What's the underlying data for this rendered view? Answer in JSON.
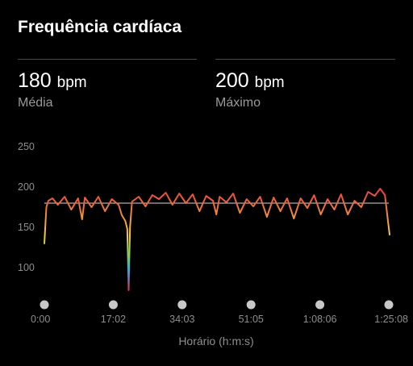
{
  "header": {
    "title": "Frequência cardíaca"
  },
  "stats": {
    "average": {
      "value": "180",
      "unit": "bpm",
      "label": "Média"
    },
    "maximum": {
      "value": "200",
      "unit": "bpm",
      "label": "Máximo"
    }
  },
  "colors": {
    "background": "#000000",
    "line_high": "#e8433b",
    "line_mid": "#f08a3a",
    "line_low": "#f6c944",
    "average_line": "#d8d8d8",
    "marker": "#c8c8c8"
  },
  "chart_data": {
    "type": "line",
    "title": "",
    "xlabel": "Horário (h:m:s)",
    "ylabel": "",
    "y_ticks": [
      "250",
      "200",
      "150",
      "100"
    ],
    "ylim": [
      65,
      260
    ],
    "x_tick_labels": [
      "0:00",
      "17:02",
      "34:03",
      "51:05",
      "1:08:06",
      "1:25:08"
    ],
    "x_ticks_seconds": [
      0,
      1022,
      2043,
      3065,
      4086,
      5108
    ],
    "average_bpm": 180,
    "legend": "none",
    "grid": false,
    "series": [
      {
        "x": [
          0,
          30,
          60,
          120,
          200,
          300,
          400,
          500,
          560,
          600,
          700,
          800,
          900,
          1000,
          1100,
          1150,
          1200,
          1230,
          1250,
          1270,
          1300,
          1400,
          1500,
          1600,
          1700,
          1800,
          1900,
          2000,
          2100,
          2200,
          2300,
          2400,
          2500,
          2550,
          2600,
          2700,
          2800,
          2900,
          3000,
          3100,
          3200,
          3300,
          3400,
          3500,
          3600,
          3700,
          3800,
          3900,
          4000,
          4100,
          4200,
          4300,
          4400,
          4500,
          4600,
          4700,
          4800,
          4900,
          4980,
          5050,
          5100,
          5120
        ],
        "values": [
          130,
          175,
          183,
          186,
          178,
          188,
          172,
          186,
          160,
          187,
          175,
          188,
          170,
          185,
          178,
          165,
          158,
          148,
          72,
          150,
          182,
          188,
          176,
          190,
          185,
          193,
          178,
          192,
          180,
          191,
          170,
          189,
          183,
          166,
          188,
          181,
          192,
          168,
          185,
          176,
          188,
          163,
          187,
          170,
          186,
          161,
          186,
          174,
          190,
          166,
          185,
          172,
          191,
          166,
          183,
          175,
          194,
          189,
          198,
          190,
          155,
          141
        ]
      }
    ]
  }
}
